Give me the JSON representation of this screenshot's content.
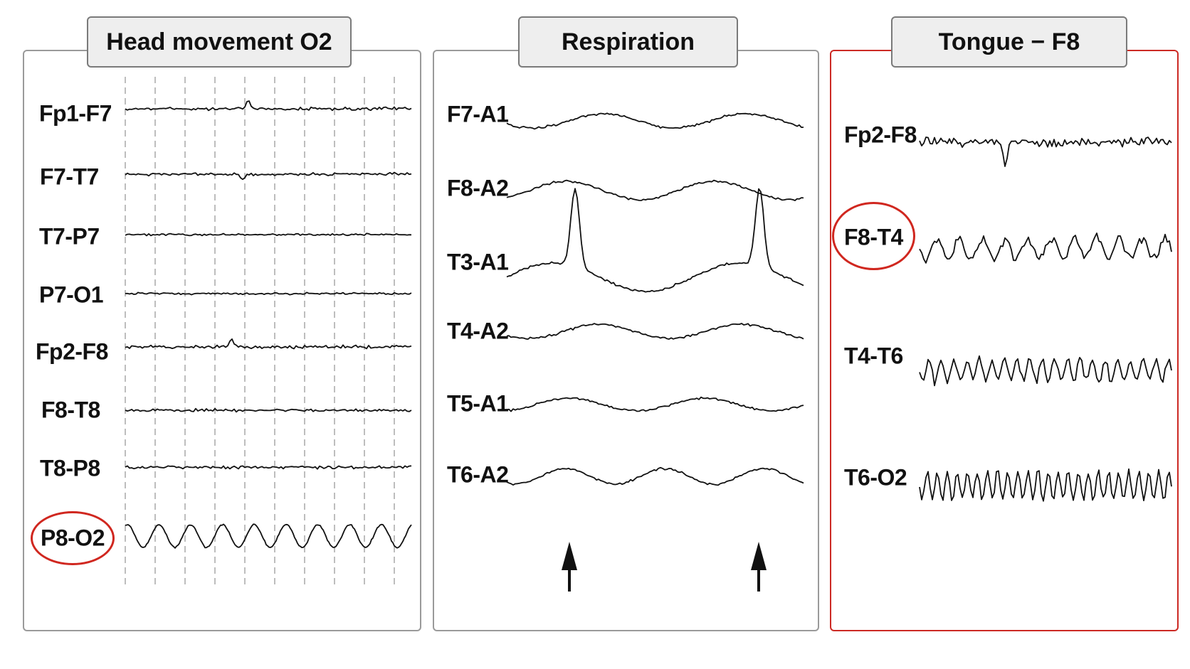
{
  "panels": [
    {
      "title": "Head movement O2",
      "border_color": "#9a9a9a",
      "channels": [
        {
          "label": "Fp1-F7"
        },
        {
          "label": "F7-T7"
        },
        {
          "label": "T7-P7"
        },
        {
          "label": "P7-O1"
        },
        {
          "label": "Fp2-F8"
        },
        {
          "label": "F8-T8"
        },
        {
          "label": "T8-P8"
        },
        {
          "label": "P8-O2",
          "highlighted": true
        }
      ],
      "dashed_grid": true
    },
    {
      "title": "Respiration",
      "border_color": "#9a9a9a",
      "channels": [
        {
          "label": "F7-A1"
        },
        {
          "label": "F8-A2"
        },
        {
          "label": "T3-A1"
        },
        {
          "label": "T4-A2"
        },
        {
          "label": "T5-A1"
        },
        {
          "label": "T6-A2"
        }
      ],
      "markers": [
        "arrow-up-icon",
        "arrow-up-icon"
      ]
    },
    {
      "title": "Tongue − F8",
      "border_color": "#cc2a24",
      "channels": [
        {
          "label": "Fp2-F8"
        },
        {
          "label": "F8-T4",
          "highlighted": true
        },
        {
          "label": "T4-T6"
        },
        {
          "label": "T6-O2"
        }
      ]
    }
  ],
  "colors": {
    "highlight": "#d0271f",
    "alert_border": "#cc2a24",
    "trace": "#111111",
    "title_background": "#eeeeee"
  }
}
